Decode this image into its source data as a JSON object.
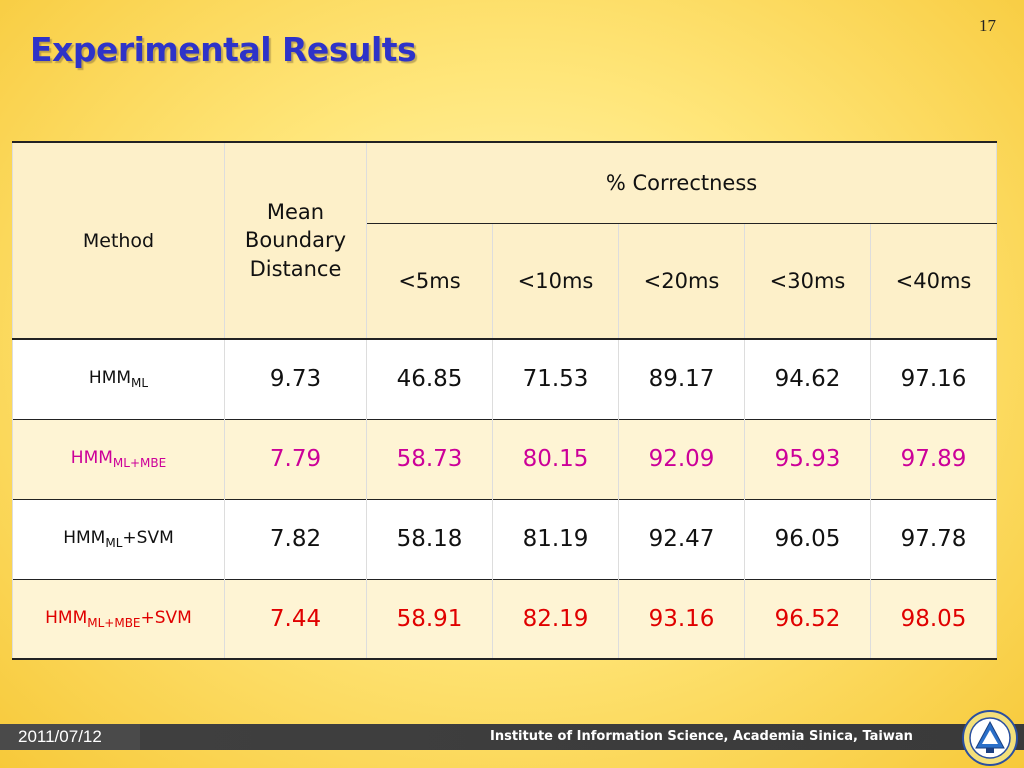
{
  "slide_number": "17",
  "title": "Experimental Results",
  "table": {
    "header": {
      "method": "Method",
      "mbd_lines": [
        "Mean",
        "Boundary",
        "Distance"
      ],
      "correctness": "% Correctness",
      "thresholds": [
        "<5ms",
        "<10ms",
        "<20ms",
        "<30ms",
        "<40ms"
      ]
    },
    "rows": [
      {
        "method_base": "HMM",
        "method_sub": "ML",
        "method_suffix": "",
        "text_color": "#111111",
        "values": [
          "9.73",
          "46.85",
          "71.53",
          "89.17",
          "94.62",
          "97.16"
        ]
      },
      {
        "method_base": "HMM",
        "method_sub": "ML+MBE",
        "method_suffix": "",
        "text_color": "#cc0099",
        "values": [
          "7.79",
          "58.73",
          "80.15",
          "92.09",
          "95.93",
          "97.89"
        ]
      },
      {
        "method_base": "HMM",
        "method_sub": "ML",
        "method_suffix": "+SVM",
        "text_color": "#111111",
        "values": [
          "7.82",
          "58.18",
          "81.19",
          "92.47",
          "96.05",
          "97.78"
        ]
      },
      {
        "method_base": "HMM",
        "method_sub": "ML+MBE",
        "method_suffix": "+SVM",
        "text_color": "#e00000",
        "values": [
          "7.44",
          "58.91",
          "82.19",
          "93.16",
          "96.52",
          "98.05"
        ]
      }
    ]
  },
  "footer": {
    "date": "2011/07/12",
    "institute": "Institute of Information Science, Academia Sinica, Taiwan"
  },
  "colors": {
    "title": "#2e33c8",
    "highlight_magenta": "#cc0099",
    "highlight_red": "#e00000"
  }
}
